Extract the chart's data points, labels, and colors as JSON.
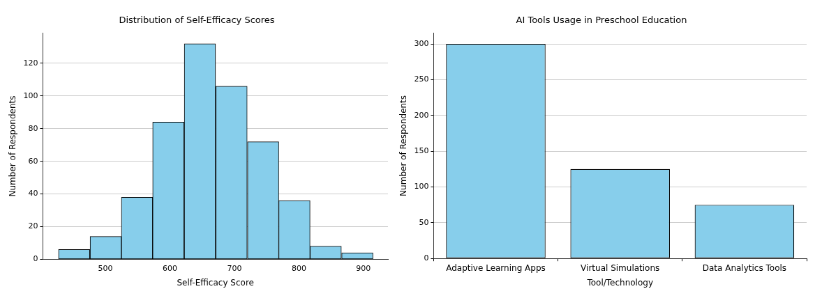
{
  "chart_data": [
    {
      "type": "histogram",
      "title": "Distribution of Self-Efficacy Scores",
      "xlabel": "Self-Efficacy Score",
      "ylabel": "Number of Respondents",
      "bins": [
        427,
        476,
        525,
        573,
        622,
        671,
        720,
        769,
        817,
        866,
        915
      ],
      "values": [
        6,
        14,
        38,
        84,
        132,
        106,
        72,
        36,
        8,
        4
      ],
      "color": "#87ceeb",
      "xlim": [
        403,
        938
      ],
      "xticks": [
        500,
        600,
        700,
        800,
        900
      ],
      "ylim": [
        0,
        138.5
      ],
      "yticks": [
        0,
        20,
        40,
        60,
        80,
        100,
        120
      ],
      "grid": "y",
      "legend": false
    },
    {
      "type": "bar",
      "title": "AI Tools Usage in Preschool Education",
      "xlabel": "Tool/Technology",
      "ylabel": "Number of Respondents",
      "categories": [
        "Adaptive Learning Apps",
        "Virtual Simulations",
        "Data Analytics Tools"
      ],
      "values": [
        300,
        125,
        75
      ],
      "color": "#87ceeb",
      "ylim": [
        0,
        315
      ],
      "yticks": [
        0,
        50,
        100,
        150,
        200,
        250,
        300
      ],
      "grid": "y",
      "legend": false
    }
  ]
}
